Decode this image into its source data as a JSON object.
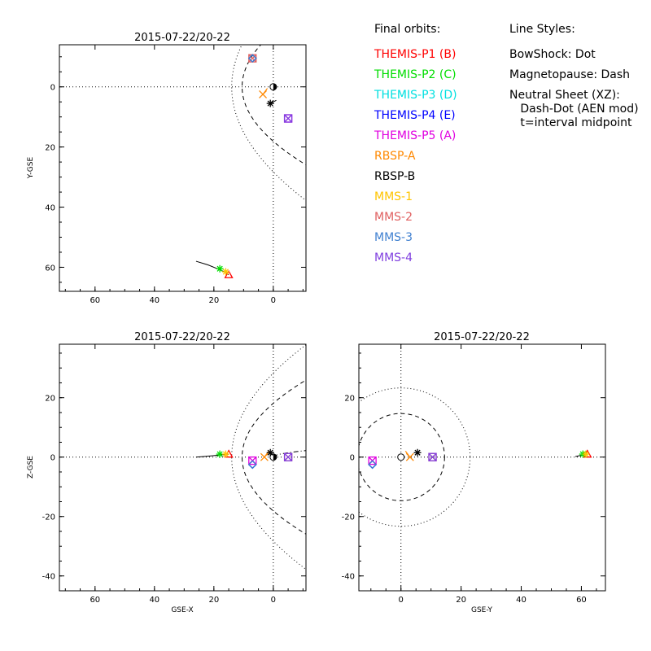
{
  "colors": {
    "THEMIS-P1": "#ff0000",
    "THEMIS-P2": "#00dd00",
    "THEMIS-P3": "#00e0e0",
    "THEMIS-P4": "#0000ff",
    "THEMIS-P5": "#e000e0",
    "RBSP-A": "#ff8800",
    "RBSP-B": "#000000",
    "MMS-1": "#ffc400",
    "MMS-2": "#e06060",
    "MMS-3": "#4080d0",
    "MMS-4": "#8040e0"
  },
  "legend": {
    "final_orbits_title": "Final orbits:",
    "final_orbits": [
      {
        "label": "THEMIS-P1 (B)",
        "color": "#ff0000"
      },
      {
        "label": "THEMIS-P2 (C)",
        "color": "#00dd00"
      },
      {
        "label": "THEMIS-P3 (D)",
        "color": "#00e0e0"
      },
      {
        "label": "THEMIS-P4 (E)",
        "color": "#0000ff"
      },
      {
        "label": "THEMIS-P5 (A)",
        "color": "#e000e0"
      },
      {
        "label": "RBSP-A",
        "color": "#ff8800"
      },
      {
        "label": "RBSP-B",
        "color": "#000000"
      },
      {
        "label": "MMS-1",
        "color": "#ffc400"
      },
      {
        "label": "MMS-2",
        "color": "#e06060"
      },
      {
        "label": "MMS-3",
        "color": "#4080d0"
      },
      {
        "label": "MMS-4",
        "color": "#8040e0"
      }
    ],
    "line_styles_title": "Line Styles:",
    "line_styles": [
      "BowShock: Dot",
      "Magnetopause: Dash",
      "Neutral Sheet (XZ):",
      "  Dash-Dot (AEN mod)",
      "  t=interval midpoint"
    ]
  },
  "chart_data": [
    {
      "type": "scatter",
      "panel": "top-left",
      "title": "2015-07-22/20-22",
      "xlabel": "",
      "ylabel": "Y-GSE",
      "xlim": [
        72,
        -11
      ],
      "ylim": [
        -14,
        68
      ],
      "x_invert": true,
      "y_invert": true,
      "xticks": [
        60,
        40,
        20,
        0
      ],
      "yticks": [
        0,
        20,
        40,
        60
      ],
      "grid": false,
      "series": [
        {
          "name": "THEMIS-P1",
          "x": [
            15
          ],
          "y": [
            62.5
          ],
          "color": "#ff0000"
        },
        {
          "name": "THEMIS-P2",
          "x": [
            18
          ],
          "y": [
            60.5
          ],
          "color": "#00dd00"
        },
        {
          "name": "THEMIS-P3",
          "x": [
            7
          ],
          "y": [
            -9.5
          ],
          "color": "#00e0e0"
        },
        {
          "name": "THEMIS-P4",
          "x": [
            7
          ],
          "y": [
            -9.5
          ],
          "color": "#0000ff"
        },
        {
          "name": "THEMIS-P5",
          "x": [
            -5
          ],
          "y": [
            10.5
          ],
          "color": "#e000e0"
        },
        {
          "name": "RBSP-A",
          "x": [
            3.5
          ],
          "y": [
            2.5
          ],
          "color": "#ff8800"
        },
        {
          "name": "RBSP-B",
          "x": [
            1
          ],
          "y": [
            5.5
          ],
          "color": "#000000"
        },
        {
          "name": "MMS-1",
          "x": [
            16
          ],
          "y": [
            61.5
          ],
          "color": "#ffc400"
        },
        {
          "name": "MMS-2",
          "x": [
            7
          ],
          "y": [
            -9.5
          ],
          "color": "#e06060"
        },
        {
          "name": "MMS-3",
          "x": [
            7
          ],
          "y": [
            -9.5
          ],
          "color": "#4080d0"
        },
        {
          "name": "MMS-4",
          "x": [
            -5
          ],
          "y": [
            10.5
          ],
          "color": "#8040e0"
        }
      ],
      "orbit_track": {
        "x": [
          26,
          22,
          19,
          16.5,
          15
        ],
        "y": [
          58,
          59.2,
          60.4,
          61.5,
          62.5
        ]
      }
    },
    {
      "type": "scatter",
      "panel": "bottom-left",
      "title": "2015-07-22/20-22",
      "xlabel": "GSE-X",
      "ylabel": "Z-GSE",
      "xlim": [
        72,
        -11
      ],
      "ylim": [
        -45,
        38
      ],
      "x_invert": true,
      "xticks": [
        60,
        40,
        20,
        0
      ],
      "yticks": [
        -40,
        -20,
        0,
        20
      ],
      "grid": false,
      "series": [
        {
          "name": "THEMIS-P1",
          "x": [
            15
          ],
          "y": [
            1
          ],
          "color": "#ff0000"
        },
        {
          "name": "THEMIS-P2",
          "x": [
            18
          ],
          "y": [
            1
          ],
          "color": "#00dd00"
        },
        {
          "name": "THEMIS-P3",
          "x": [
            7
          ],
          "y": [
            -2.5
          ],
          "color": "#00e0e0"
        },
        {
          "name": "THEMIS-P4",
          "x": [
            7
          ],
          "y": [
            -2.5
          ],
          "color": "#0000ff"
        },
        {
          "name": "THEMIS-P5",
          "x": [
            7
          ],
          "y": [
            -1.2
          ],
          "color": "#e000e0"
        },
        {
          "name": "RBSP-A",
          "x": [
            3
          ],
          "y": [
            0
          ],
          "color": "#ff8800"
        },
        {
          "name": "RBSP-B",
          "x": [
            1
          ],
          "y": [
            1.5
          ],
          "color": "#000000"
        },
        {
          "name": "MMS-1",
          "x": [
            16
          ],
          "y": [
            1
          ],
          "color": "#ffc400"
        },
        {
          "name": "MMS-2",
          "x": [
            -5
          ],
          "y": [
            0
          ],
          "color": "#e06060"
        },
        {
          "name": "MMS-3",
          "x": [
            7
          ],
          "y": [
            -2.5
          ],
          "color": "#4080d0"
        },
        {
          "name": "MMS-4",
          "x": [
            -5
          ],
          "y": [
            0
          ],
          "color": "#8040e0"
        }
      ],
      "orbit_track": {
        "x": [
          26,
          21,
          17,
          15
        ],
        "y": [
          0,
          0.4,
          0.8,
          1
        ]
      }
    },
    {
      "type": "scatter",
      "panel": "bottom-right",
      "title": "2015-07-22/20-22",
      "xlabel": "GSE-Y",
      "ylabel": "",
      "xlim": [
        -14,
        68
      ],
      "ylim": [
        -45,
        38
      ],
      "xticks": [
        0,
        20,
        40,
        60
      ],
      "yticks": [
        -40,
        -20,
        0,
        20
      ],
      "grid": false,
      "series": [
        {
          "name": "THEMIS-P1",
          "x": [
            62
          ],
          "y": [
            1
          ],
          "color": "#ff0000"
        },
        {
          "name": "THEMIS-P2",
          "x": [
            60.5
          ],
          "y": [
            1
          ],
          "color": "#00dd00"
        },
        {
          "name": "THEMIS-P3",
          "x": [
            -9.5
          ],
          "y": [
            -2.5
          ],
          "color": "#00e0e0"
        },
        {
          "name": "THEMIS-P4",
          "x": [
            -9.5
          ],
          "y": [
            -2.5
          ],
          "color": "#0000ff"
        },
        {
          "name": "THEMIS-P5",
          "x": [
            -9.5
          ],
          "y": [
            -1.2
          ],
          "color": "#e000e0"
        },
        {
          "name": "RBSP-A",
          "x": [
            3
          ],
          "y": [
            0
          ],
          "color": "#ff8800"
        },
        {
          "name": "RBSP-B",
          "x": [
            5.5
          ],
          "y": [
            1.5
          ],
          "color": "#000000"
        },
        {
          "name": "MMS-1",
          "x": [
            61.5
          ],
          "y": [
            1
          ],
          "color": "#ffc400"
        },
        {
          "name": "MMS-2",
          "x": [
            10.5
          ],
          "y": [
            0
          ],
          "color": "#e06060"
        },
        {
          "name": "MMS-3",
          "x": [
            -9.5
          ],
          "y": [
            -2.5
          ],
          "color": "#4080d0"
        },
        {
          "name": "MMS-4",
          "x": [
            10.5
          ],
          "y": [
            0
          ],
          "color": "#8040e0"
        }
      ],
      "orbit_track": {
        "x": [
          58,
          60,
          62
        ],
        "y": [
          0.2,
          0.6,
          1
        ]
      }
    }
  ]
}
